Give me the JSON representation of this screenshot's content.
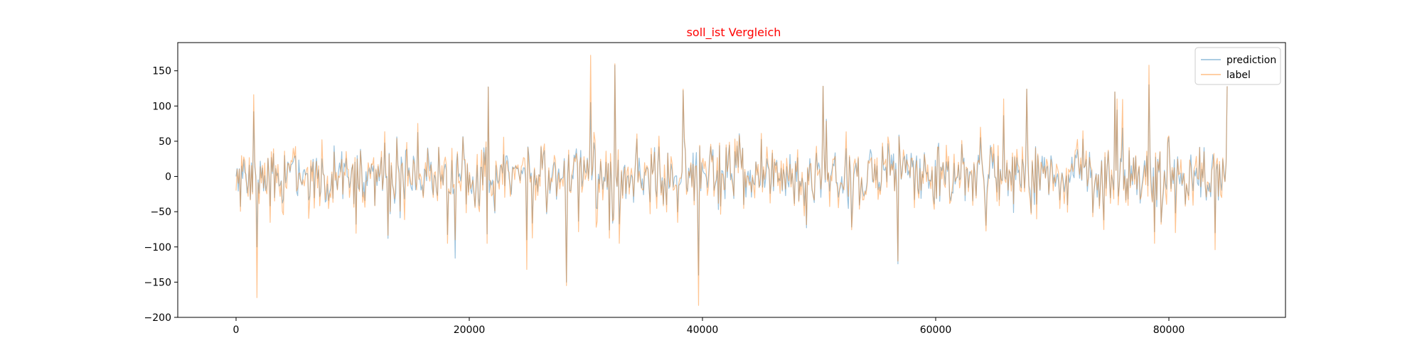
{
  "chart_data": {
    "type": "line",
    "title": "soll_ist Vergleich",
    "title_color": "#ff0000",
    "xlabel": "",
    "ylabel": "",
    "xlim": [
      -5000,
      90000
    ],
    "ylim": [
      -200,
      190
    ],
    "x_ticks": [
      0,
      20000,
      40000,
      60000,
      80000
    ],
    "y_ticks": [
      -200,
      -150,
      -100,
      -50,
      0,
      50,
      100,
      150
    ],
    "x_tick_labels": [
      "0",
      "20000",
      "40000",
      "60000",
      "80000"
    ],
    "y_tick_labels": [
      "−200",
      "−150",
      "−100",
      "−50",
      "0",
      "50",
      "100",
      "150"
    ],
    "grid": false,
    "legend_position": "top-right",
    "series": [
      {
        "name": "prediction",
        "color": "#1f77b4",
        "opacity": 0.45
      },
      {
        "name": "label",
        "color": "#ff7f0e",
        "opacity": 0.45
      }
    ],
    "x_range": [
      0,
      85000
    ],
    "key_points": [
      {
        "x": 1800,
        "label": -172,
        "prediction": -100
      },
      {
        "x": 1500,
        "label": 116,
        "prediction": 92
      },
      {
        "x": 18800,
        "label": -90,
        "prediction": -116
      },
      {
        "x": 21600,
        "label": 127,
        "prediction": 127
      },
      {
        "x": 24900,
        "label": -132,
        "prediction": -90
      },
      {
        "x": 28300,
        "label": -155,
        "prediction": -150
      },
      {
        "x": 30400,
        "label": 172,
        "prediction": 105
      },
      {
        "x": 32500,
        "label": 160,
        "prediction": 158
      },
      {
        "x": 38300,
        "label": 124,
        "prediction": 122
      },
      {
        "x": 39700,
        "label": -183,
        "prediction": -140
      },
      {
        "x": 50300,
        "label": 128,
        "prediction": 128
      },
      {
        "x": 56800,
        "label": -120,
        "prediction": -124
      },
      {
        "x": 67800,
        "label": 124,
        "prediction": 124
      },
      {
        "x": 75400,
        "label": 120,
        "prediction": 120
      },
      {
        "x": 78300,
        "label": 158,
        "prediction": 130
      },
      {
        "x": 84000,
        "label": -104,
        "prediction": -80
      },
      {
        "x": 85000,
        "label": 128,
        "prediction": 128
      }
    ]
  }
}
